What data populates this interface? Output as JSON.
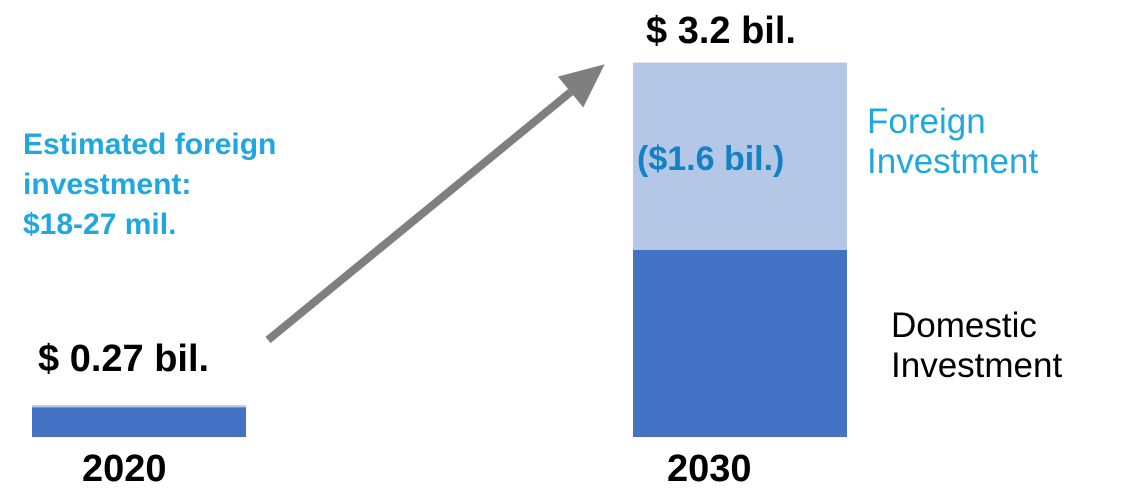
{
  "chart_data": {
    "type": "bar",
    "stacked": true,
    "categories": [
      "2020",
      "2030"
    ],
    "series": [
      {
        "name": "Domestic Investment",
        "values": [
          0.27,
          1.6
        ],
        "color": "#4472C4"
      },
      {
        "name": "Foreign Investment",
        "values": [
          0,
          1.6
        ],
        "color": "#B4C7E7"
      }
    ],
    "totals": [
      "$ 0.27 bil.",
      "$ 3.2 bil."
    ],
    "segment_labels": {
      "foreign_2030": "($1.6 bil.)"
    },
    "annotation_lines": [
      "Estimated foreign",
      "investment:",
      "$18-27 mil."
    ],
    "legend": {
      "foreign": [
        "Foreign",
        "Investment"
      ],
      "domestic": [
        "Domestic",
        "Investment"
      ]
    },
    "arrow": {
      "from": "2020",
      "to": "2030",
      "color": "#7F7F7F"
    },
    "colors": {
      "domestic": "#4472C4",
      "foreign": "#B4C7E7",
      "accent_text": "#1FA8E0",
      "segment_text": "#1282C5",
      "arrow": "#7F7F7F"
    },
    "title": "",
    "xlabel": "",
    "ylabel": "",
    "ylim": [
      0,
      3.2
    ],
    "grid": false,
    "legend_placement": "right"
  }
}
